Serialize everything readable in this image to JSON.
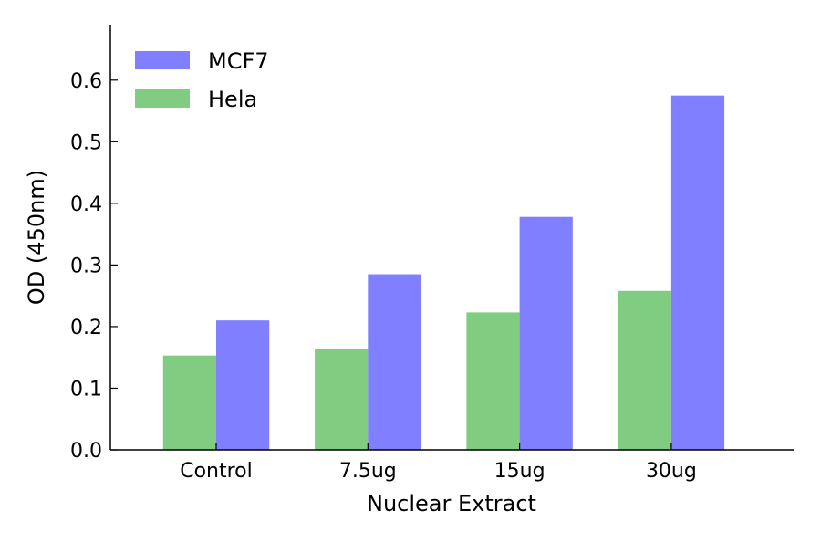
{
  "chart_data": {
    "type": "bar",
    "title": "",
    "xlabel": "Nuclear Extract",
    "ylabel": "OD (450nm)",
    "categories": [
      "Control",
      "7.5ug",
      "15ug",
      "30ug"
    ],
    "series": [
      {
        "name": "Hela",
        "color": "#80cc80",
        "values": [
          0.153,
          0.164,
          0.223,
          0.258
        ]
      },
      {
        "name": "MCF7",
        "color": "#7f7fff",
        "values": [
          0.21,
          0.285,
          0.378,
          0.575
        ]
      }
    ],
    "legend_order": [
      "MCF7",
      "Hela"
    ],
    "yticks": [
      "0.0",
      "0.1",
      "0.2",
      "0.3",
      "0.4",
      "0.5",
      "0.6"
    ],
    "ylim": [
      0,
      0.69
    ],
    "grid": false,
    "legend_position": "top-left"
  }
}
